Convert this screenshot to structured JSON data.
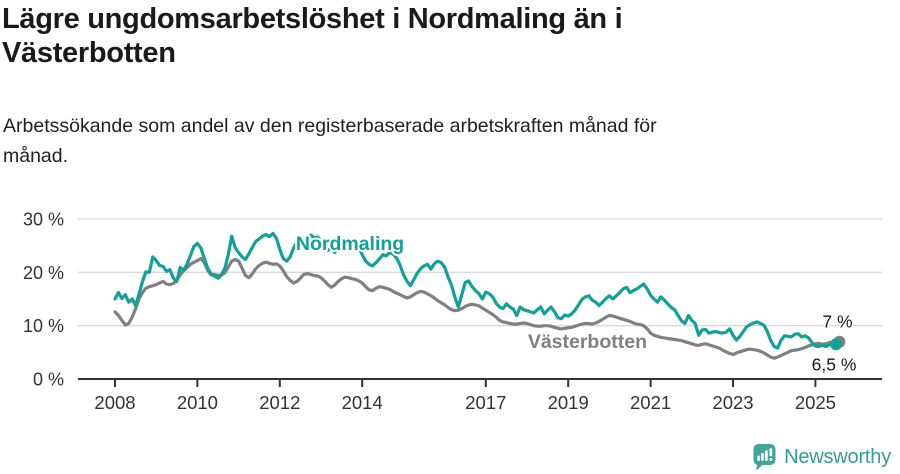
{
  "header": {
    "title_lines": [
      "Lägre ungdomsarbetslöshet i Nordmaling än i",
      "Västerbotten"
    ],
    "subtitle_lines": [
      "Arbetssökande som andel av den registerbaserade arbetskraften månad för",
      "månad."
    ]
  },
  "chart_data": {
    "type": "line",
    "title": "Lägre ungdomsarbetslöshet i Nordmaling än i Västerbotten",
    "subtitle": "Arbetssökande som andel av den registerbaserade arbetskraften månad för månad.",
    "grid": true,
    "x_axis": {
      "unit": "year",
      "start": 2008,
      "end": 2025.6,
      "tick_labels": [
        "2008",
        "2010",
        "2012",
        "2014",
        "2017",
        "2019",
        "2021",
        "2023",
        "2025"
      ],
      "tick_years": [
        2008,
        2010,
        2012,
        2014,
        2017,
        2019,
        2021,
        2023,
        2025
      ]
    },
    "y_axis": {
      "min": 0,
      "max": 30,
      "ticks": [
        0,
        10,
        20,
        30
      ],
      "suffix": " %"
    },
    "colors": {
      "gridline": "#d9d9d9",
      "axis_line": "#333333",
      "axis_text": "#333333",
      "annotation": "#1a1a1a"
    },
    "series": [
      {
        "name": "Västerbotten",
        "color": "#808080",
        "start_year": 2008,
        "points_per_year": 12,
        "end_label": "7 %",
        "end_label_position": "above",
        "end_value": 7.0,
        "label_anchor": {
          "year": 2018.02,
          "value": 5.8
        },
        "values": [
          12.6,
          11.9,
          11.0,
          10.1,
          10.4,
          11.6,
          13.2,
          15.0,
          16.2,
          17.0,
          17.3,
          17.5,
          17.7,
          18.0,
          18.3,
          17.8,
          17.7,
          17.9,
          18.6,
          19.5,
          20.3,
          20.9,
          21.5,
          21.9,
          22.2,
          22.6,
          21.8,
          20.4,
          19.5,
          19.6,
          19.4,
          19.5,
          19.9,
          21.0,
          22.1,
          22.4,
          22.1,
          20.8,
          19.4,
          19.0,
          19.7,
          20.7,
          21.3,
          21.7,
          21.9,
          21.7,
          21.5,
          21.6,
          21.2,
          20.3,
          19.2,
          18.5,
          18.0,
          18.3,
          18.9,
          19.6,
          19.8,
          19.6,
          19.4,
          19.3,
          19.0,
          18.4,
          17.7,
          17.2,
          17.6,
          18.3,
          18.8,
          19.1,
          19.0,
          18.8,
          18.7,
          18.4,
          18.0,
          17.3,
          16.7,
          16.6,
          17.0,
          17.3,
          17.2,
          17.0,
          16.8,
          16.4,
          16.1,
          15.8,
          15.5,
          15.2,
          15.4,
          15.8,
          16.2,
          16.4,
          16.3,
          16.0,
          15.6,
          15.2,
          14.7,
          14.3,
          13.9,
          13.4,
          13.0,
          12.8,
          12.9,
          13.2,
          13.6,
          13.9,
          14.0,
          13.9,
          13.7,
          13.3,
          12.9,
          12.5,
          12.1,
          11.6,
          11.0,
          10.7,
          10.6,
          10.4,
          10.3,
          10.3,
          10.4,
          10.5,
          10.4,
          10.2,
          10.0,
          9.9,
          9.9,
          10.0,
          10.0,
          9.9,
          9.7,
          9.5,
          9.4,
          9.5,
          9.6,
          9.7,
          9.9,
          10.1,
          10.3,
          10.4,
          10.4,
          10.3,
          10.5,
          10.8,
          11.2,
          11.6,
          11.9,
          11.8,
          11.6,
          11.4,
          11.2,
          11.0,
          10.8,
          10.5,
          10.3,
          10.2,
          10.0,
          9.4,
          8.6,
          8.2,
          8.0,
          7.8,
          7.7,
          7.6,
          7.5,
          7.4,
          7.3,
          7.2,
          7.0,
          6.8,
          6.6,
          6.4,
          6.3,
          6.5,
          6.6,
          6.4,
          6.2,
          6.0,
          5.8,
          5.4,
          5.1,
          4.8,
          4.6,
          4.9,
          5.1,
          5.3,
          5.5,
          5.6,
          5.5,
          5.4,
          5.2,
          4.9,
          4.5,
          4.1,
          3.9,
          4.1,
          4.4,
          4.7,
          5.0,
          5.3,
          5.4,
          5.5,
          5.7,
          5.9,
          6.2,
          6.4,
          6.6,
          6.7,
          6.5,
          6.6,
          6.8,
          6.9,
          7.0,
          7.0
        ]
      },
      {
        "name": "Nordmaling",
        "color": "#11a09a",
        "start_year": 2008,
        "points_per_year": 12,
        "end_label": "6,5 %",
        "end_label_position": "below",
        "end_value": 6.5,
        "label_anchor": {
          "year": 2012.39,
          "value": 24.2
        },
        "values": [
          15.0,
          16.2,
          15.1,
          15.8,
          14.4,
          15.0,
          13.8,
          15.9,
          18.3,
          20.1,
          20.0,
          22.9,
          22.2,
          21.3,
          21.1,
          20.2,
          20.5,
          18.9,
          18.3,
          20.9,
          20.4,
          21.6,
          23.2,
          24.9,
          25.4,
          24.6,
          22.6,
          20.8,
          19.7,
          19.3,
          18.9,
          19.5,
          20.8,
          23.3,
          26.8,
          24.6,
          23.7,
          22.9,
          22.4,
          23.5,
          24.7,
          25.8,
          26.3,
          26.8,
          27.1,
          26.7,
          27.3,
          26.4,
          24.3,
          22.6,
          22.1,
          22.9,
          24.5,
          25.7,
          25.9,
          25.6,
          26.3,
          27.0,
          26.5,
          26.6,
          25.8,
          24.8,
          24.1,
          24.6,
          23.7,
          24.8,
          25.2,
          24.8,
          24.4,
          25.0,
          25.3,
          24.7,
          23.3,
          22.1,
          21.5,
          21.2,
          21.8,
          22.5,
          23.3,
          23.1,
          23.7,
          23.4,
          22.7,
          21.4,
          19.6,
          18.4,
          17.5,
          18.6,
          19.8,
          20.7,
          21.2,
          21.5,
          20.6,
          21.6,
          22.1,
          21.8,
          21.0,
          19.2,
          17.6,
          15.3,
          13.5,
          15.8,
          18.1,
          18.4,
          17.3,
          16.6,
          16.0,
          15.0,
          16.3,
          16.0,
          15.4,
          14.2,
          13.5,
          13.2,
          14.1,
          13.5,
          13.1,
          11.9,
          13.5,
          13.0,
          12.8,
          12.6,
          12.4,
          13.0,
          13.5,
          12.2,
          12.9,
          13.5,
          12.6,
          11.5,
          11.3,
          12.0,
          11.8,
          12.2,
          12.9,
          13.9,
          14.9,
          15.4,
          15.6,
          14.8,
          14.4,
          13.8,
          14.4,
          15.1,
          15.6,
          15.0,
          15.6,
          16.2,
          16.9,
          17.2,
          16.2,
          16.6,
          16.9,
          17.4,
          17.8,
          16.9,
          15.7,
          15.0,
          14.4,
          15.4,
          14.8,
          14.1,
          13.4,
          13.0,
          11.9,
          10.9,
          10.4,
          11.9,
          11.0,
          10.4,
          8.2,
          9.2,
          9.3,
          8.6,
          8.8,
          8.9,
          8.7,
          8.6,
          8.8,
          9.4,
          8.2,
          7.3,
          8.0,
          8.9,
          9.8,
          10.2,
          10.5,
          10.7,
          10.4,
          10.1,
          8.9,
          7.2,
          6.1,
          5.8,
          7.3,
          8.1,
          8.0,
          7.9,
          8.4,
          8.5,
          7.9,
          8.1,
          7.7,
          6.8,
          6.2,
          6.1,
          6.3,
          6.1,
          6.4,
          6.6,
          6.5
        ]
      }
    ]
  },
  "footer": {
    "brand": "Newsworthy"
  }
}
